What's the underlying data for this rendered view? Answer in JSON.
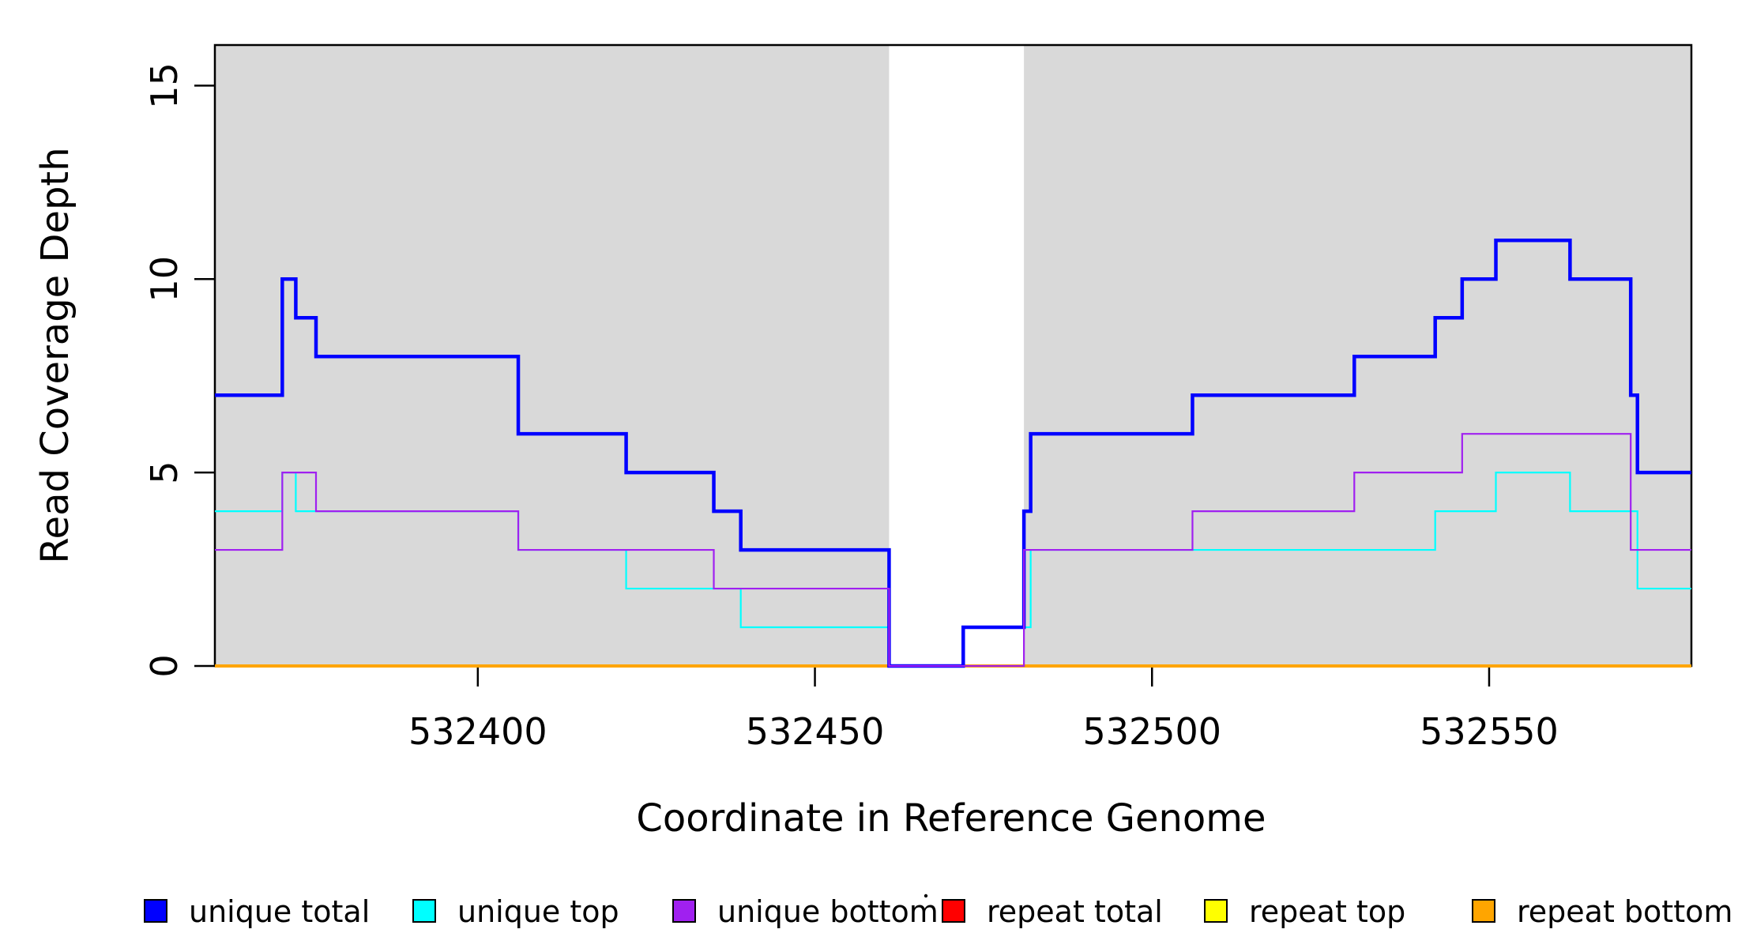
{
  "figure": {
    "background": "#FFFFFF",
    "shaded_band_color": "#D9D9D9",
    "box_color": "#000000",
    "gap_region": [
      532461,
      532481
    ]
  },
  "chart_data": {
    "type": "line",
    "subtype": "step-coverage",
    "title": "",
    "xlabel": "Coordinate in Reference Genome",
    "ylabel": "Read Coverage Depth",
    "xlim": [
      532361,
      532580
    ],
    "ylim": [
      0,
      16.05
    ],
    "x_ticks": [
      "532400",
      "532450",
      "532500",
      "532550"
    ],
    "x_tick_values": [
      532400,
      532450,
      532500,
      532550
    ],
    "y_ticks": [
      "0",
      "5",
      "10",
      "15"
    ],
    "y_tick_values": [
      0,
      5,
      10,
      15
    ],
    "grid": "off",
    "shaded_regions": [
      [
        532361,
        532461
      ],
      [
        532481,
        532580
      ]
    ],
    "series": [
      {
        "name": "repeat total",
        "color": "#FF0000",
        "width": 3,
        "points": [
          [
            532361,
            0
          ],
          [
            532580,
            0
          ]
        ]
      },
      {
        "name": "repeat top",
        "color": "#FFFF00",
        "width": 3,
        "points": [
          [
            532361,
            0
          ],
          [
            532580,
            0
          ]
        ]
      },
      {
        "name": "repeat bottom",
        "color": "#FFA500",
        "width": 4,
        "points": [
          [
            532361,
            0
          ],
          [
            532580,
            0
          ]
        ]
      },
      {
        "name": "unique top",
        "color": "#00FFFF",
        "width": 2.2,
        "points": [
          [
            532361,
            4
          ],
          [
            532371,
            5
          ],
          [
            532373,
            4
          ],
          [
            532406,
            3
          ],
          [
            532422,
            2
          ],
          [
            532439,
            1
          ],
          [
            532461,
            0
          ],
          [
            532472,
            1
          ],
          [
            532482,
            3
          ],
          [
            532542,
            4
          ],
          [
            532551,
            5
          ],
          [
            532562,
            4
          ],
          [
            532572,
            2
          ],
          [
            532580,
            2
          ]
        ]
      },
      {
        "name": "unique total",
        "color": "#0000FF",
        "width": 4.5,
        "points": [
          [
            532361,
            7
          ],
          [
            532371,
            10
          ],
          [
            532373,
            9
          ],
          [
            532376,
            8
          ],
          [
            532406,
            6
          ],
          [
            532422,
            5
          ],
          [
            532435,
            4
          ],
          [
            532439,
            3
          ],
          [
            532461,
            0
          ],
          [
            532472,
            1
          ],
          [
            532481,
            4
          ],
          [
            532482,
            6
          ],
          [
            532506,
            7
          ],
          [
            532530,
            8
          ],
          [
            532542,
            9
          ],
          [
            532546,
            10
          ],
          [
            532551,
            11
          ],
          [
            532562,
            10
          ],
          [
            532571,
            7
          ],
          [
            532572,
            5
          ],
          [
            532580,
            5
          ]
        ]
      },
      {
        "name": "unique bottom",
        "color": "#A020F0",
        "width": 2.2,
        "points": [
          [
            532361,
            3
          ],
          [
            532371,
            5
          ],
          [
            532376,
            4
          ],
          [
            532406,
            3
          ],
          [
            532435,
            2
          ],
          [
            532461,
            0
          ],
          [
            532481,
            3
          ],
          [
            532506,
            4
          ],
          [
            532530,
            5
          ],
          [
            532546,
            6
          ],
          [
            532571,
            3
          ],
          [
            532580,
            3
          ]
        ]
      }
    ],
    "legend": {
      "position": "bottom",
      "entries": [
        {
          "label": "unique total",
          "color": "#0000FF"
        },
        {
          "label": "unique top",
          "color": "#00FFFF"
        },
        {
          "label": "unique bottom",
          "color": "#A020F0"
        },
        {
          "label": "repeat total",
          "color": "#FF0000"
        },
        {
          "label": "repeat top",
          "color": "#FFFF00"
        },
        {
          "label": "repeat bottom",
          "color": "#FFA500"
        }
      ]
    }
  }
}
